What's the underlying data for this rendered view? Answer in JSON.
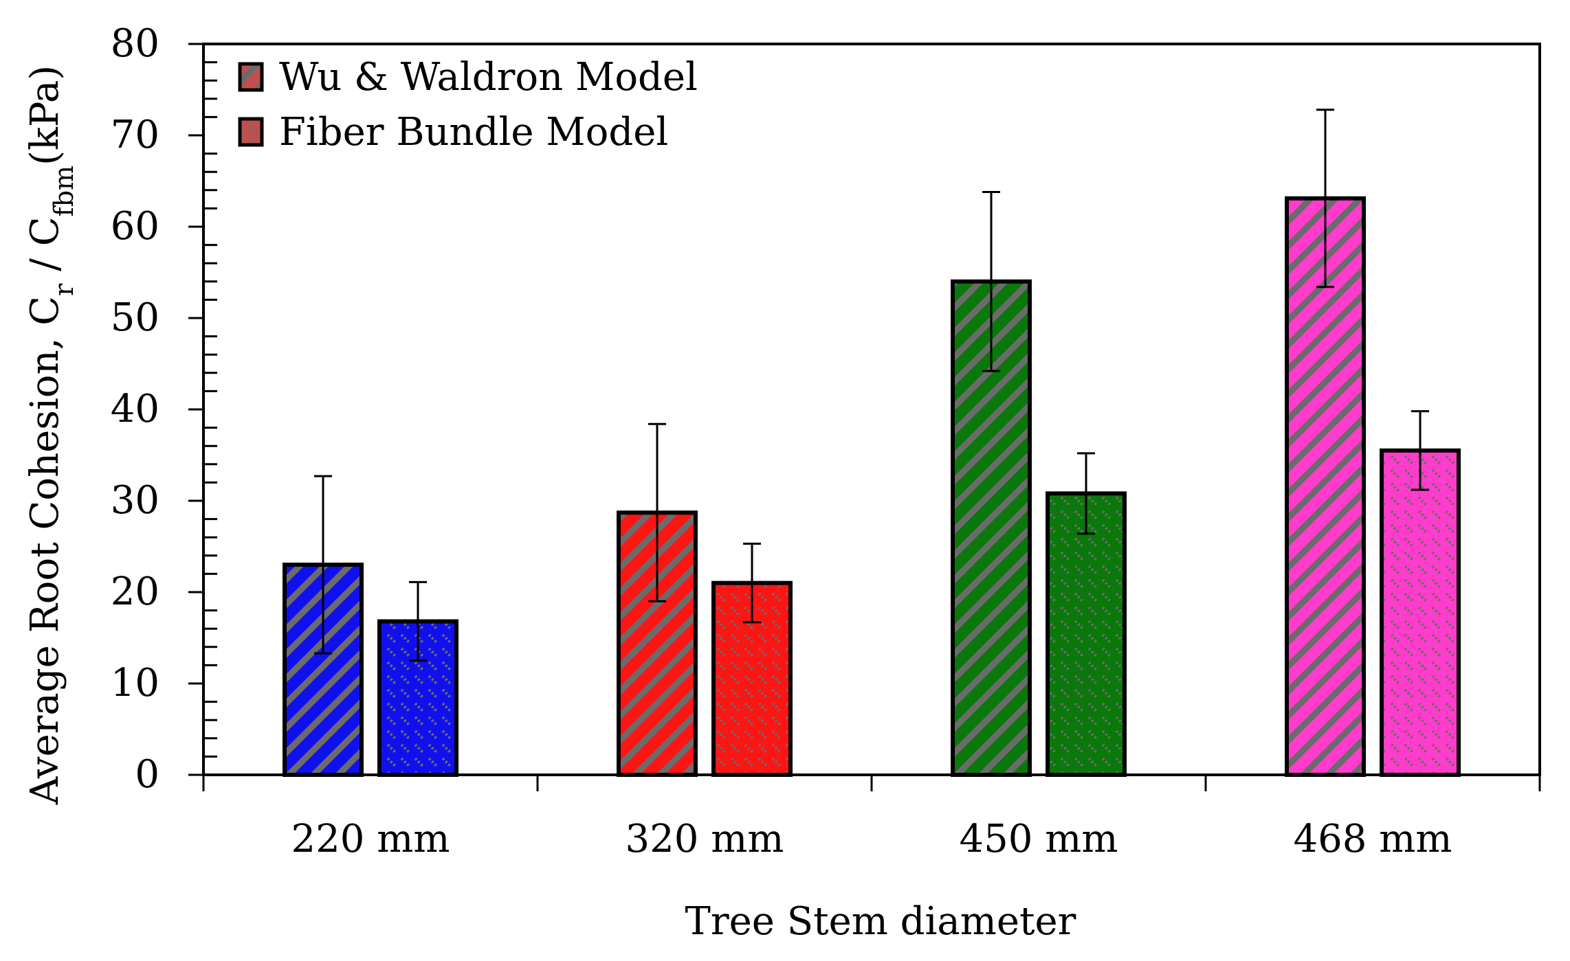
{
  "chart_data": {
    "type": "bar",
    "title": "",
    "xlabel": "Tree Stem diameter",
    "ylabel": {
      "prefix": "Average Root Cohesion, C",
      "sub1": "r",
      "mid": " / C",
      "sub2": "fbm",
      "suffix": "(kPa)"
    },
    "ylim": [
      0,
      80
    ],
    "yticks": [
      0,
      10,
      20,
      30,
      40,
      50,
      60,
      70,
      80
    ],
    "y_minor_step": 2,
    "categories": [
      "220 mm",
      "320 mm",
      "450 mm",
      "468 mm"
    ],
    "category_colors": [
      "#1010ee",
      "#ff1414",
      "#0a780a",
      "#ff3ccc"
    ],
    "hatch_color": "#6b6b6b",
    "series": [
      {
        "name": "Wu & Waldron Model",
        "pattern": "diagonal",
        "values": [
          23,
          28.7,
          54,
          63.1
        ],
        "error": [
          9.7,
          9.7,
          9.8,
          9.7
        ]
      },
      {
        "name": "Fiber Bundle Model",
        "pattern": "dotted",
        "values": [
          16.8,
          21,
          30.8,
          35.5
        ],
        "error": [
          4.3,
          4.3,
          4.4,
          4.3
        ]
      }
    ],
    "legend": {
      "position": "top-left",
      "swatch_color": "#c0504d"
    }
  }
}
